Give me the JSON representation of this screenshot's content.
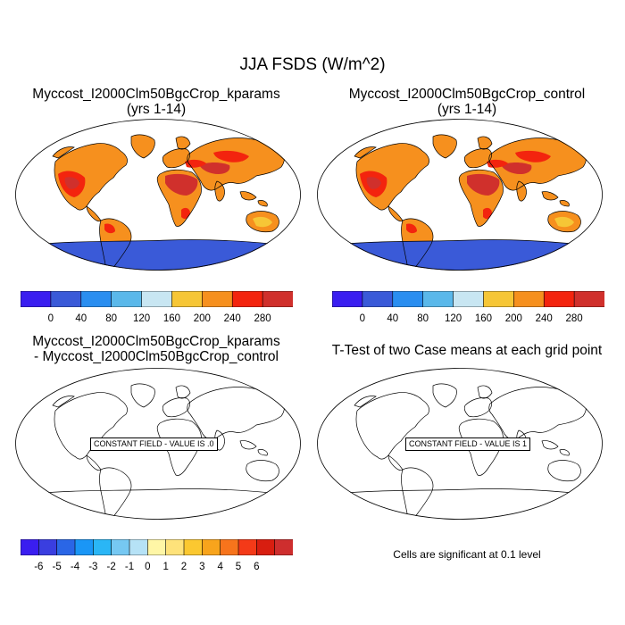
{
  "title": "JJA FSDS (W/m^2)",
  "panels": {
    "top_left": {
      "line1": "Myccost_I2000Clm50BgcCrop_kparams",
      "line2": "(yrs 1-14)"
    },
    "top_right": {
      "line1": "Myccost_I2000Clm50BgcCrop_control",
      "line2": "(yrs 1-14)"
    },
    "bottom_left": {
      "line1": "Myccost_I2000Clm50BgcCrop_kparams",
      "line2": "- Myccost_I2000Clm50BgcCrop_control",
      "constant_label": "CONSTANT FIELD - VALUE IS .0"
    },
    "bottom_right": {
      "line1": "T-Test of two Case means at each grid point",
      "constant_label": "CONSTANT FIELD - VALUE IS 1"
    }
  },
  "colorbar_main": {
    "colors": [
      "#3a1ef0",
      "#3a5ad8",
      "#2a8ef0",
      "#5ab8ea",
      "#c8e6f2",
      "#f6c636",
      "#f6901e",
      "#f3240e",
      "#d0302c"
    ],
    "labels": [
      "0",
      "40",
      "80",
      "120",
      "160",
      "200",
      "240",
      "280"
    ]
  },
  "colorbar_diff": {
    "colors": [
      "#3a1ef0",
      "#3a3ee0",
      "#2a66e6",
      "#1a96f6",
      "#2ab6f6",
      "#76c8f2",
      "#b6e2f6",
      "#fff6a6",
      "#fee27a",
      "#fbc830",
      "#f8a41c",
      "#f7741c",
      "#f43a18",
      "#d81e10",
      "#ce2e2e"
    ],
    "labels": [
      "-6",
      "-5",
      "-4",
      "-3",
      "-2",
      "-1",
      "0",
      "1",
      "2",
      "3",
      "4",
      "5",
      "6"
    ]
  },
  "note": "Cells are significant at 0.1 level"
}
